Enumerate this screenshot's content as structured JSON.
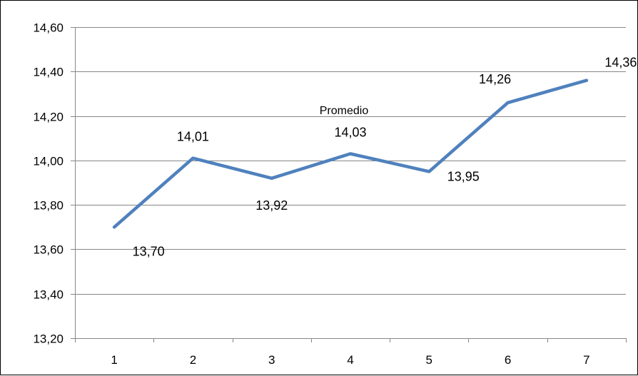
{
  "chart_data": {
    "type": "line",
    "title": "Promedio",
    "categories": [
      "1",
      "2",
      "3",
      "4",
      "5",
      "6",
      "7"
    ],
    "series": [
      {
        "name": "",
        "color": "#4F81BD",
        "values": [
          13.7,
          14.01,
          13.92,
          14.03,
          13.95,
          14.26,
          14.36
        ],
        "labels": [
          "13,70",
          "14,01",
          "13,92",
          "14,03",
          "13,95",
          "14,26",
          "14,36"
        ]
      }
    ],
    "ylim": [
      13.2,
      14.6
    ],
    "yticks": [
      "13,20",
      "13,40",
      "13,60",
      "13,80",
      "14,00",
      "14,20",
      "14,40",
      "14,60"
    ],
    "xlabel": "",
    "ylabel": "",
    "grid": true,
    "legend": "none"
  }
}
